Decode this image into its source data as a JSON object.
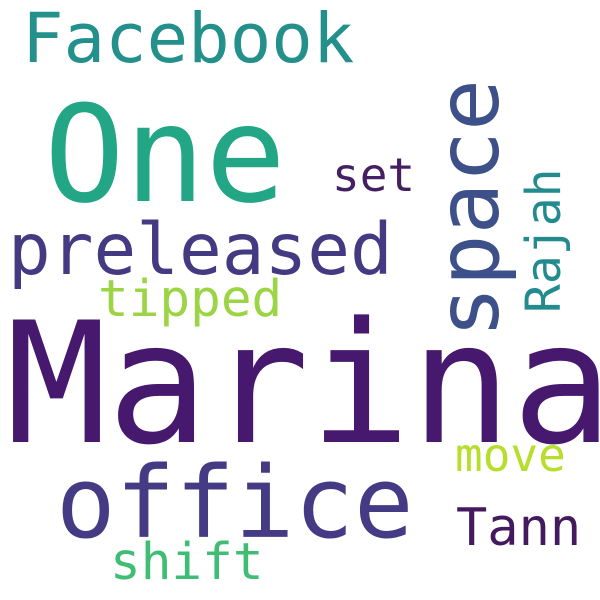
{
  "words": [
    {
      "text": "Facebook",
      "color": "#23908c"
    },
    {
      "text": "One",
      "color": "#22a685"
    },
    {
      "text": "space",
      "color": "#3d5089"
    },
    {
      "text": "set",
      "color": "#441f62"
    },
    {
      "text": "Rajah",
      "color": "#238a8d"
    },
    {
      "text": "preleased",
      "color": "#433a82"
    },
    {
      "text": "tipped",
      "color": "#9bd444"
    },
    {
      "text": "Marina",
      "color": "#46196e"
    },
    {
      "text": "move",
      "color": "#b6de2b"
    },
    {
      "text": "office",
      "color": "#443b84"
    },
    {
      "text": "Tann",
      "color": "#441a5e"
    },
    {
      "text": "shift",
      "color": "#40bd74"
    }
  ]
}
